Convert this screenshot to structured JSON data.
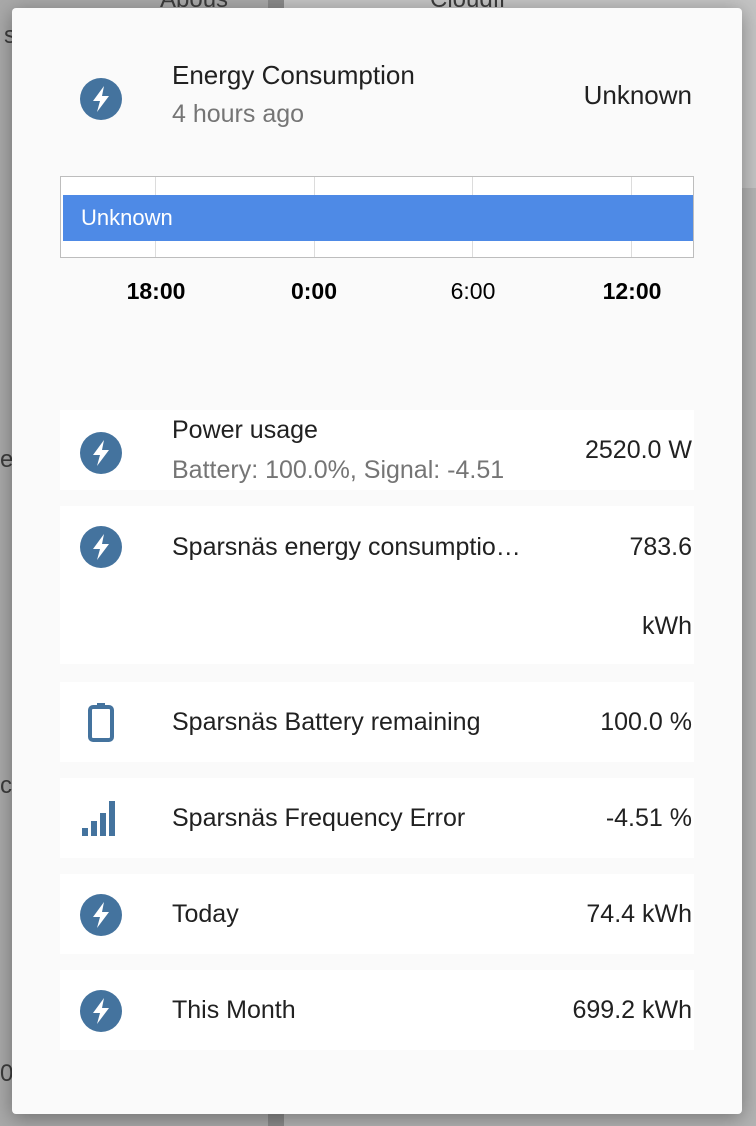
{
  "background": {
    "fragments": [
      "Abous",
      "Cloudfl",
      "s",
      "e",
      "c)",
      "0"
    ]
  },
  "dialog": {
    "header": {
      "icon": "flash-icon",
      "title": "Energy Consumption",
      "subtitle": "4 hours ago",
      "state": "Unknown"
    },
    "history": {
      "bar_label": "Unknown",
      "bar_color": "#4e8ae6",
      "ticks": [
        {
          "label": "18:00",
          "bold": true
        },
        {
          "label": "0:00",
          "bold": true
        },
        {
          "label": "6:00",
          "bold": false
        },
        {
          "label": "12:00",
          "bold": true
        }
      ]
    },
    "entities": [
      {
        "icon": "flash-icon",
        "name": "Power usage",
        "secondary": "Battery: 100.0%, Signal: -4.51",
        "value": "2520.0 W"
      },
      {
        "icon": "flash-icon",
        "name": "Sparsnäs energy consumptio…",
        "value": "783.6",
        "unit": "kWh"
      },
      {
        "icon": "battery-icon",
        "name": "Sparsnäs Battery remaining",
        "value": "100.0 %"
      },
      {
        "icon": "signal-bars-icon",
        "name": "Sparsnäs Frequency Error",
        "value": "-4.51 %"
      },
      {
        "icon": "flash-icon",
        "name": "Today",
        "value": "74.4 kWh"
      },
      {
        "icon": "flash-icon",
        "name": "This Month",
        "value": "699.2 kWh"
      }
    ],
    "icon_color": "#44739e"
  }
}
